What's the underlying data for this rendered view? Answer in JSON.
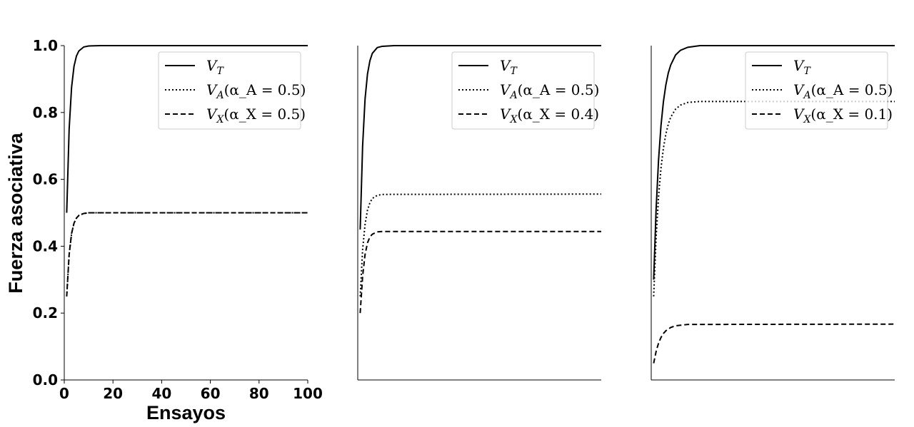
{
  "chart_data": [
    {
      "type": "line",
      "xlabel": "Ensayos",
      "ylabel": "Fuerza asociativa",
      "xlim": [
        0,
        100
      ],
      "ylim": [
        0,
        1
      ],
      "xticks": [
        "0",
        "20",
        "40",
        "60",
        "80",
        "100"
      ],
      "yticks": [
        "0.0",
        "0.2",
        "0.4",
        "0.6",
        "0.8",
        "1.0"
      ],
      "show_axis_ticks": true,
      "legend_position": "top-right",
      "grid": false,
      "series": [
        {
          "name": "V_T",
          "style": "solid",
          "points": [
            [
              1,
              0.5
            ],
            [
              2,
              0.75
            ],
            [
              3,
              0.875
            ],
            [
              4,
              0.938
            ],
            [
              5,
              0.969
            ],
            [
              6,
              0.984
            ],
            [
              8,
              0.996
            ],
            [
              10,
              0.999
            ],
            [
              15,
              1.0
            ],
            [
              100,
              1.0
            ]
          ]
        },
        {
          "name": "V_A(α_A = 0.5)",
          "style": "dotted",
          "points": [
            [
              1,
              0.25
            ],
            [
              2,
              0.375
            ],
            [
              3,
              0.438
            ],
            [
              4,
              0.469
            ],
            [
              5,
              0.484
            ],
            [
              6,
              0.492
            ],
            [
              8,
              0.498
            ],
            [
              10,
              0.5
            ],
            [
              100,
              0.5
            ]
          ]
        },
        {
          "name": "V_X(α_X = 0.5)",
          "style": "dashed",
          "points": [
            [
              1,
              0.25
            ],
            [
              2,
              0.375
            ],
            [
              3,
              0.438
            ],
            [
              4,
              0.469
            ],
            [
              5,
              0.484
            ],
            [
              6,
              0.492
            ],
            [
              8,
              0.498
            ],
            [
              10,
              0.5
            ],
            [
              100,
              0.5
            ]
          ]
        }
      ],
      "legend": [
        {
          "main": "V",
          "sub": "T",
          "rest": ""
        },
        {
          "main": "V",
          "sub": "A",
          "rest": "(α_A = 0.5)"
        },
        {
          "main": "V",
          "sub": "X",
          "rest": "(α_X = 0.5)"
        }
      ]
    },
    {
      "type": "line",
      "xlim": [
        0,
        100
      ],
      "ylim": [
        0,
        1
      ],
      "show_axis_ticks": false,
      "legend_position": "top-right",
      "grid": false,
      "series": [
        {
          "name": "V_T",
          "style": "solid",
          "points": [
            [
              1,
              0.45
            ],
            [
              2,
              0.7
            ],
            [
              3,
              0.84
            ],
            [
              4,
              0.915
            ],
            [
              5,
              0.955
            ],
            [
              6,
              0.977
            ],
            [
              8,
              0.994
            ],
            [
              10,
              0.998
            ],
            [
              15,
              1.0
            ],
            [
              100,
              1.0
            ]
          ]
        },
        {
          "name": "V_A(α_A = 0.5)",
          "style": "dotted",
          "points": [
            [
              1,
              0.25
            ],
            [
              2,
              0.39
            ],
            [
              3,
              0.465
            ],
            [
              4,
              0.508
            ],
            [
              5,
              0.53
            ],
            [
              6,
              0.543
            ],
            [
              8,
              0.552
            ],
            [
              10,
              0.555
            ],
            [
              100,
              0.556
            ]
          ]
        },
        {
          "name": "V_X(α_X = 0.4)",
          "style": "dashed",
          "points": [
            [
              1,
              0.2
            ],
            [
              2,
              0.31
            ],
            [
              3,
              0.375
            ],
            [
              4,
              0.41
            ],
            [
              5,
              0.428
            ],
            [
              6,
              0.436
            ],
            [
              8,
              0.443
            ],
            [
              10,
              0.444
            ],
            [
              100,
              0.444
            ]
          ]
        }
      ],
      "legend": [
        {
          "main": "V",
          "sub": "T",
          "rest": ""
        },
        {
          "main": "V",
          "sub": "A",
          "rest": "(α_A = 0.5)"
        },
        {
          "main": "V",
          "sub": "X",
          "rest": "(α_X = 0.4)"
        }
      ]
    },
    {
      "type": "line",
      "xlim": [
        0,
        100
      ],
      "ylim": [
        0,
        1
      ],
      "show_axis_ticks": false,
      "legend_position": "top-right",
      "grid": false,
      "series": [
        {
          "name": "V_T",
          "style": "solid",
          "points": [
            [
              1,
              0.3
            ],
            [
              2,
              0.51
            ],
            [
              3,
              0.657
            ],
            [
              4,
              0.76
            ],
            [
              5,
              0.832
            ],
            [
              6,
              0.882
            ],
            [
              7,
              0.918
            ],
            [
              8,
              0.942
            ],
            [
              10,
              0.972
            ],
            [
              12,
              0.986
            ],
            [
              15,
              0.995
            ],
            [
              20,
              1.0
            ],
            [
              100,
              1.0
            ]
          ]
        },
        {
          "name": "V_A(α_A = 0.5)",
          "style": "dotted",
          "points": [
            [
              1,
              0.25
            ],
            [
              2,
              0.425
            ],
            [
              3,
              0.548
            ],
            [
              4,
              0.633
            ],
            [
              5,
              0.693
            ],
            [
              6,
              0.735
            ],
            [
              7,
              0.765
            ],
            [
              8,
              0.786
            ],
            [
              10,
              0.81
            ],
            [
              12,
              0.822
            ],
            [
              15,
              0.83
            ],
            [
              20,
              0.833
            ],
            [
              100,
              0.833
            ]
          ]
        },
        {
          "name": "V_X(α_X = 0.1)",
          "style": "dashed",
          "points": [
            [
              1,
              0.05
            ],
            [
              2,
              0.085
            ],
            [
              3,
              0.11
            ],
            [
              4,
              0.127
            ],
            [
              5,
              0.139
            ],
            [
              6,
              0.147
            ],
            [
              8,
              0.157
            ],
            [
              10,
              0.162
            ],
            [
              15,
              0.166
            ],
            [
              100,
              0.167
            ]
          ]
        }
      ],
      "legend": [
        {
          "main": "V",
          "sub": "T",
          "rest": ""
        },
        {
          "main": "V",
          "sub": "A",
          "rest": "(α_A = 0.5)"
        },
        {
          "main": "V",
          "sub": "X",
          "rest": "(α_X = 0.1)"
        }
      ]
    }
  ]
}
